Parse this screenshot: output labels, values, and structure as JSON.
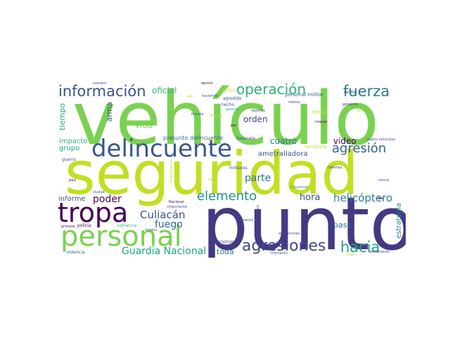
{
  "wordcloud": {
    "words": [
      {
        "text": "vehículo",
        "color": "#7ad151"
      },
      {
        "text": "seguridad",
        "color": "#c2df23"
      },
      {
        "text": "punto",
        "color": "#443983"
      },
      {
        "text": "delincuente",
        "color": "#39568c"
      },
      {
        "text": "tropa",
        "color": "#440154"
      },
      {
        "text": "personal",
        "color": "#7ad151"
      },
      {
        "text": "información",
        "color": "#3b528b"
      },
      {
        "text": "operación",
        "color": "#2db27d"
      },
      {
        "text": "fuerza",
        "color": "#2a788e"
      },
      {
        "text": "agresiones",
        "color": "#3e4a89"
      },
      {
        "text": "hacia",
        "color": "#20a386"
      },
      {
        "text": "elemento",
        "color": "#21918c"
      },
      {
        "text": "agresión",
        "color": "#33638d"
      },
      {
        "text": "helicóptero",
        "color": "#26828e"
      },
      {
        "text": "Guardia Nacional",
        "color": "#20a486"
      },
      {
        "text": "Culiacán",
        "color": "#3b528b"
      },
      {
        "text": "oficial",
        "color": "#35b779"
      },
      {
        "text": "vida",
        "color": "#7ad151"
      },
      {
        "text": "poder",
        "color": "#440154"
      },
      {
        "text": "fuego",
        "color": "#31688e"
      },
      {
        "text": "orden",
        "color": "#414487"
      },
      {
        "text": "parte",
        "color": "#2c728e"
      },
      {
        "text": "cuatro",
        "color": "#2a788e"
      },
      {
        "text": "video",
        "color": "#440154"
      },
      {
        "text": "hora",
        "color": "#3b528b"
      },
      {
        "text": "base",
        "color": "#31688e"
      },
      {
        "text": "toda",
        "color": "#2a788e"
      },
      {
        "text": "informe",
        "color": "#3b528b"
      },
      {
        "text": "grupo",
        "color": "#1fa187"
      },
      {
        "text": "impacto",
        "color": "#2db27d"
      },
      {
        "text": "tiempo",
        "color": "#20a486"
      },
      {
        "text": "arma",
        "color": "#3b528b"
      },
      {
        "text": "estrategia",
        "color": "#25858e"
      },
      {
        "text": "ametralladora",
        "color": "#3b528b"
      },
      {
        "text": "presunto delincuente",
        "color": "#31688e"
      },
      {
        "text": "personal militar",
        "color": "#33638d"
      },
      {
        "text": "apoyo",
        "color": "#d2e21b"
      },
      {
        "text": "agredido",
        "color": "#3b528b"
      },
      {
        "text": "hecho",
        "color": "#3b528b"
      },
      {
        "text": "general",
        "color": "#2db27d"
      },
      {
        "text": "mismo",
        "color": "#443983"
      },
      {
        "text": "militar",
        "color": "#b5de2b"
      },
      {
        "text": "interés",
        "color": "#440154"
      },
      {
        "text": "recibe",
        "color": "#3b528b"
      },
      {
        "text": "gobierno",
        "color": "#443983"
      },
      {
        "text": "Gabinete",
        "color": "#3b528b"
      },
      {
        "text": "Secretaría",
        "color": "#b5de2b"
      },
      {
        "text": "militares",
        "color": "#3b528b"
      },
      {
        "text": "Defensa",
        "color": "#3b528b"
      },
      {
        "text": "investigación",
        "color": "#b5de2b"
      },
      {
        "text": "Cheyenne",
        "color": "#21918c"
      },
      {
        "text": "importante",
        "color": "#3b528b"
      },
      {
        "text": "personas",
        "color": "#3b528b"
      },
      {
        "text": "vigilancia",
        "color": "#35b779"
      },
      {
        "text": "policía",
        "color": "#440154"
      },
      {
        "text": "violencia",
        "color": "#3b528b"
      },
      {
        "text": "momento",
        "color": "#3b528b"
      },
      {
        "text": "armamento",
        "color": "#3b528b"
      },
      {
        "text": "derecho",
        "color": "#3b528b"
      },
      {
        "text": "operaciones",
        "color": "#3b528b"
      },
      {
        "text": "política",
        "color": "#3b528b"
      },
      {
        "text": "número",
        "color": "#3b528b"
      },
      {
        "text": "guerra",
        "color": "#3b528b"
      },
      {
        "text": "país",
        "color": "#440154"
      },
      {
        "text": "ciudad",
        "color": "#3b528b"
      },
      {
        "text": "primero",
        "color": "#440154"
      },
      {
        "text": "Nacional",
        "color": "#440154"
      },
      {
        "text": "Unidos",
        "color": "#3b528b"
      },
      {
        "text": "haciendo",
        "color": "#3b528b"
      },
      {
        "text": "fiscalía",
        "color": "#3b528b"
      },
      {
        "text": "objetivo",
        "color": "#3b528b"
      },
      {
        "text": "par",
        "color": "#440154"
      },
      {
        "text": "dentro",
        "color": "#440154"
      },
      {
        "text": "cuatro vehículos",
        "color": "#3b528b"
      },
      {
        "text": "iba",
        "color": "#440154"
      },
      {
        "text": "nunca",
        "color": "#3b528b"
      },
      {
        "text": "sale",
        "color": "#b5de2b"
      },
      {
        "text": "llega",
        "color": "#b5de2b"
      },
      {
        "text": "llevaba",
        "color": "#b5de2b"
      },
      {
        "text": "resulta",
        "color": "#b5de2b"
      },
      {
        "text": "mil",
        "color": "#b5de2b"
      },
      {
        "text": "solo",
        "color": "#b5de2b"
      }
    ]
  }
}
